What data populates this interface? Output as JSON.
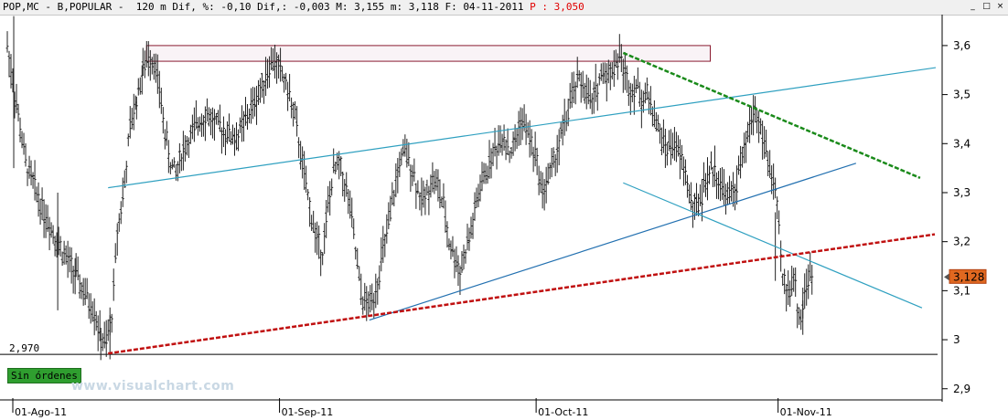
{
  "header": {
    "text": "POP,MC - B,POPULAR -  120 m Dif, %: -0,10 Dif,: -0,003 M: 3,155 m: 3,118 F: 04-11-2011 ",
    "price_label": "P : 3,050",
    "controls": [
      "_",
      "□",
      "×"
    ]
  },
  "status": {
    "orders_label": "Sin órdenes"
  },
  "watermark": {
    "text": "www.visualchart.com"
  },
  "chart_data": {
    "type": "candlestick",
    "symbol": "POP,MC",
    "name": "B,POPULAR",
    "interval": "120 m",
    "y_ticks": [
      2.9,
      3.0,
      3.1,
      3.2,
      3.3,
      3.4,
      3.5,
      3.6
    ],
    "y_tick_labels": [
      "2,9",
      "3",
      "3,1",
      "3,2",
      "3,3",
      "3,4",
      "3,5",
      "3,6"
    ],
    "ylim": [
      2.85,
      3.665
    ],
    "x_range": [
      0,
      1020
    ],
    "date_labels": [
      {
        "text": "01-Ago-11",
        "x": 0
      },
      {
        "text": "01-Sep-11",
        "x": 291
      },
      {
        "text": "01-Oct-11",
        "x": 571
      },
      {
        "text": "01-Nov-11",
        "x": 835
      }
    ],
    "last_price": 3.128,
    "last_price_label": "3,128",
    "ref_level": 2.97,
    "ref_level_label": "2,970",
    "series": [
      {
        "values": [
          [
            0,
            3.6
          ],
          [
            20,
            3.36
          ],
          [
            40,
            3.26
          ],
          [
            60,
            3.18
          ],
          [
            75,
            3.13
          ],
          [
            85,
            3.09
          ],
          [
            95,
            3.06
          ],
          [
            102,
            3.0
          ],
          [
            108,
            2.99
          ],
          [
            114,
            3.05
          ],
          [
            120,
            3.22
          ],
          [
            128,
            3.32
          ],
          [
            134,
            3.43
          ],
          [
            141,
            3.49
          ],
          [
            148,
            3.55
          ],
          [
            154,
            3.58
          ],
          [
            160,
            3.57
          ],
          [
            166,
            3.51
          ],
          [
            172,
            3.42
          ],
          [
            178,
            3.36
          ],
          [
            184,
            3.34
          ],
          [
            190,
            3.38
          ],
          [
            196,
            3.4
          ],
          [
            202,
            3.42
          ],
          [
            210,
            3.45
          ],
          [
            218,
            3.46
          ],
          [
            226,
            3.44
          ],
          [
            234,
            3.43
          ],
          [
            242,
            3.42
          ],
          [
            250,
            3.41
          ],
          [
            258,
            3.44
          ],
          [
            266,
            3.47
          ],
          [
            274,
            3.5
          ],
          [
            282,
            3.54
          ],
          [
            290,
            3.57
          ],
          [
            298,
            3.55
          ],
          [
            306,
            3.51
          ],
          [
            314,
            3.45
          ],
          [
            320,
            3.38
          ],
          [
            326,
            3.31
          ],
          [
            332,
            3.25
          ],
          [
            338,
            3.2
          ],
          [
            344,
            3.18
          ],
          [
            350,
            3.27
          ],
          [
            356,
            3.34
          ],
          [
            362,
            3.36
          ],
          [
            368,
            3.32
          ],
          [
            374,
            3.27
          ],
          [
            380,
            3.18
          ],
          [
            386,
            3.09
          ],
          [
            392,
            3.07
          ],
          [
            398,
            3.08
          ],
          [
            404,
            3.12
          ],
          [
            410,
            3.18
          ],
          [
            416,
            3.23
          ],
          [
            422,
            3.3
          ],
          [
            428,
            3.36
          ],
          [
            434,
            3.38
          ],
          [
            440,
            3.36
          ],
          [
            446,
            3.32
          ],
          [
            452,
            3.28
          ],
          [
            458,
            3.3
          ],
          [
            464,
            3.33
          ],
          [
            470,
            3.31
          ],
          [
            476,
            3.27
          ],
          [
            482,
            3.2
          ],
          [
            488,
            3.17
          ],
          [
            494,
            3.14
          ],
          [
            500,
            3.18
          ],
          [
            506,
            3.22
          ],
          [
            512,
            3.28
          ],
          [
            518,
            3.32
          ],
          [
            524,
            3.35
          ],
          [
            530,
            3.38
          ],
          [
            536,
            3.4
          ],
          [
            542,
            3.42
          ],
          [
            548,
            3.38
          ],
          [
            554,
            3.4
          ],
          [
            560,
            3.45
          ],
          [
            566,
            3.43
          ],
          [
            572,
            3.4
          ],
          [
            578,
            3.36
          ],
          [
            584,
            3.3
          ],
          [
            590,
            3.33
          ],
          [
            596,
            3.36
          ],
          [
            602,
            3.4
          ],
          [
            608,
            3.44
          ],
          [
            614,
            3.48
          ],
          [
            620,
            3.52
          ],
          [
            626,
            3.53
          ],
          [
            632,
            3.5
          ],
          [
            638,
            3.48
          ],
          [
            644,
            3.52
          ],
          [
            650,
            3.55
          ],
          [
            656,
            3.54
          ],
          [
            662,
            3.56
          ],
          [
            668,
            3.58
          ],
          [
            674,
            3.54
          ],
          [
            680,
            3.51
          ],
          [
            686,
            3.52
          ],
          [
            692,
            3.49
          ],
          [
            698,
            3.5
          ],
          [
            704,
            3.47
          ],
          [
            710,
            3.43
          ],
          [
            716,
            3.4
          ],
          [
            722,
            3.39
          ],
          [
            728,
            3.4
          ],
          [
            734,
            3.37
          ],
          [
            740,
            3.34
          ],
          [
            746,
            3.28
          ],
          [
            752,
            3.27
          ],
          [
            758,
            3.3
          ],
          [
            764,
            3.33
          ],
          [
            770,
            3.35
          ],
          [
            776,
            3.33
          ],
          [
            782,
            3.3
          ],
          [
            788,
            3.29
          ],
          [
            794,
            3.31
          ],
          [
            800,
            3.35
          ],
          [
            806,
            3.4
          ],
          [
            812,
            3.45
          ],
          [
            816,
            3.47
          ],
          [
            820,
            3.44
          ],
          [
            826,
            3.4
          ],
          [
            832,
            3.35
          ],
          [
            838,
            3.3
          ],
          [
            842,
            3.22
          ],
          [
            846,
            3.12
          ],
          [
            852,
            3.1
          ],
          [
            858,
            3.13
          ],
          [
            862,
            3.07
          ],
          [
            866,
            3.04
          ],
          [
            870,
            3.1
          ],
          [
            874,
            3.12
          ],
          [
            880,
            3.13
          ]
        ]
      }
    ],
    "annotations": [
      {
        "type": "rectangle",
        "x0": 152,
        "x1": 767,
        "y0": 3.568,
        "y1": 3.6
      },
      {
        "type": "trendline",
        "name": "upper-channel",
        "color": "#2fa0c0",
        "from": [
          110,
          3.31
        ],
        "to": [
          1013,
          3.555
        ]
      },
      {
        "type": "trendline",
        "name": "lower-support",
        "color": "#2270b0",
        "from": [
          395,
          3.04
        ],
        "to": [
          926,
          3.36
        ]
      },
      {
        "type": "trendline",
        "name": "descending",
        "color": "#2fa0c0",
        "from": [
          672,
          3.32
        ],
        "to": [
          998,
          3.065
        ]
      },
      {
        "type": "trendline",
        "name": "green-resistance",
        "color": "#1a8a1a",
        "dashed": true,
        "from": [
          672,
          3.585
        ],
        "to": [
          996,
          3.33
        ]
      },
      {
        "type": "trendline",
        "name": "red-trend",
        "color": "#c01010",
        "dashed": true,
        "from": [
          110,
          2.972
        ],
        "to": [
          1012,
          3.215
        ]
      }
    ]
  }
}
